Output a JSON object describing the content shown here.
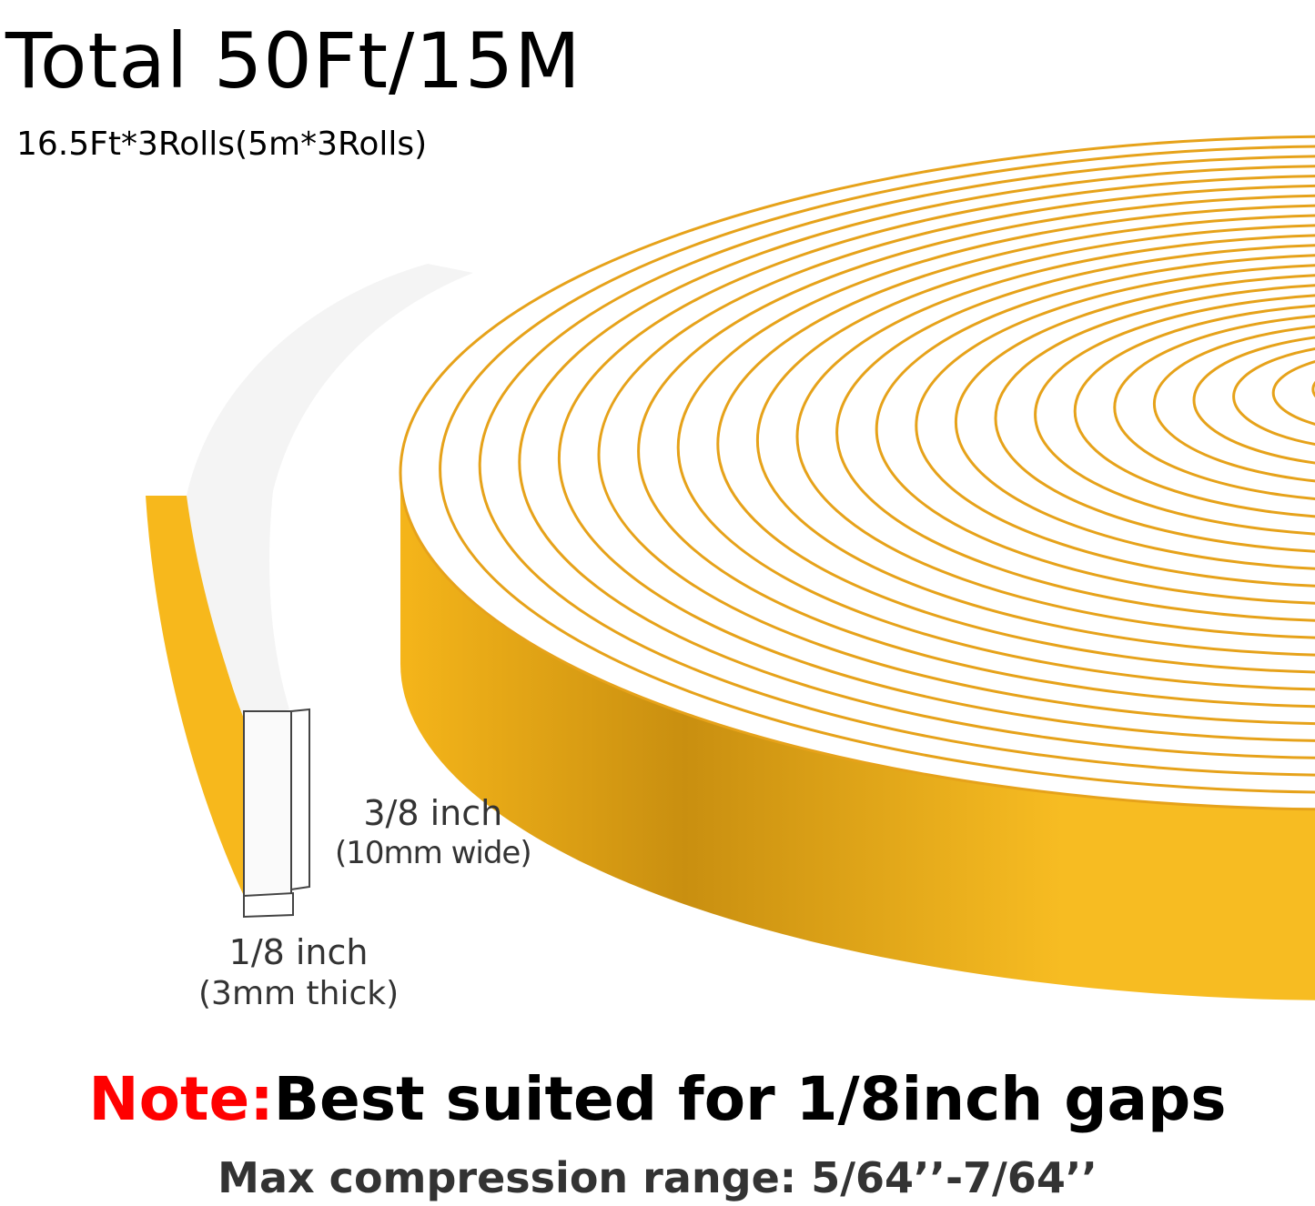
{
  "header": {
    "title": "Total 50Ft/15M",
    "subtitle": "16.5Ft*3Rolls(5m*3Rolls)"
  },
  "dimensions": {
    "width_main": "3/8 inch",
    "width_sub": "(10mm wide)",
    "thickness_main": "1/8 inch",
    "thickness_sub": "(3mm thick)"
  },
  "footer": {
    "note_label": "Note:",
    "note_text": "Best suited for 1/8inch gaps",
    "range_text": "Max compression range: 5/64’’-7/64’’"
  },
  "colors": {
    "tape_side": "#f7b81c",
    "tape_rings": "#e6a21a",
    "note_label": "#ff0000"
  }
}
